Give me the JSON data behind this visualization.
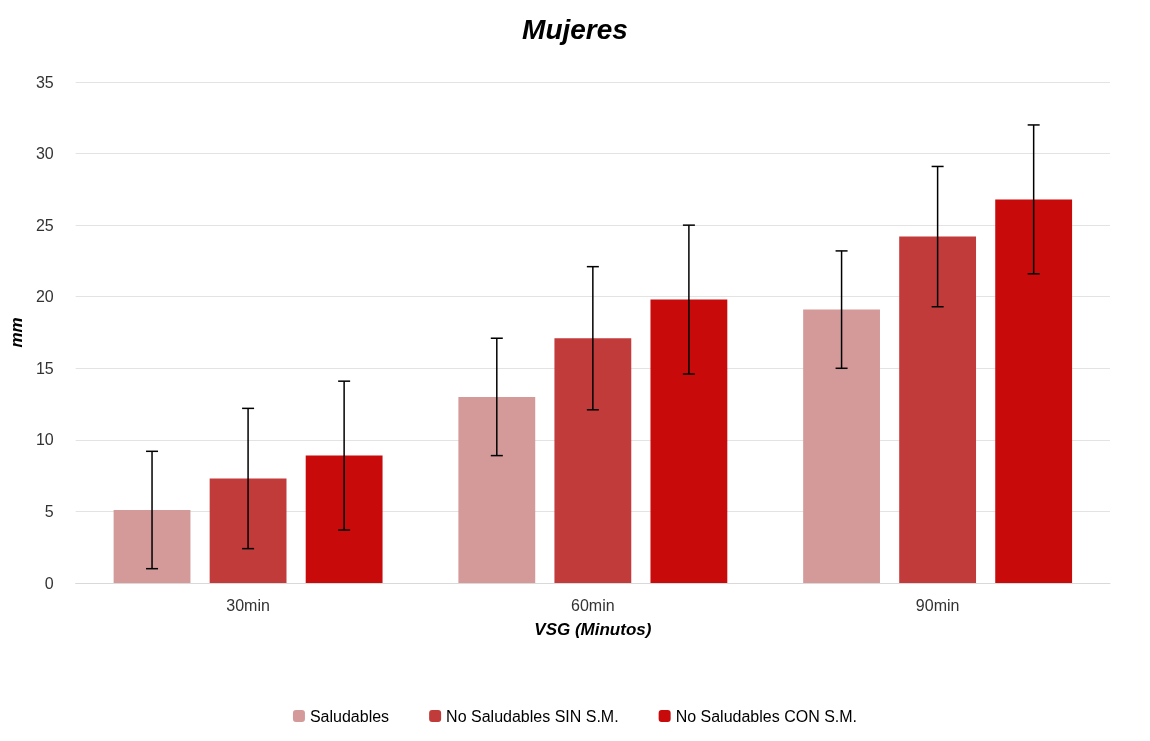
{
  "chart_data": {
    "type": "bar",
    "title": "Mujeres",
    "xlabel": "VSG (Minutos)",
    "ylabel": "mm",
    "categories": [
      "30min",
      "60min",
      "90min"
    ],
    "series": [
      {
        "name": "Saludables",
        "color": "#d49a9a",
        "values": [
          5.1,
          13.0,
          19.1
        ],
        "errors": [
          4.1,
          4.1,
          4.1
        ]
      },
      {
        "name": "No Saludables SIN S.M.",
        "color": "#c13b3b",
        "values": [
          7.3,
          17.1,
          24.2
        ],
        "errors": [
          4.9,
          5.0,
          4.9
        ]
      },
      {
        "name": "No Saludables CON S.M.",
        "color": "#c80a0a",
        "values": [
          8.9,
          19.8,
          26.8
        ],
        "errors": [
          5.2,
          5.2,
          5.2
        ]
      }
    ],
    "ylim": [
      0,
      35
    ],
    "yticks": [
      0,
      5,
      10,
      15,
      20,
      25,
      30,
      35
    ],
    "grid": "y",
    "legend": "bottom"
  }
}
